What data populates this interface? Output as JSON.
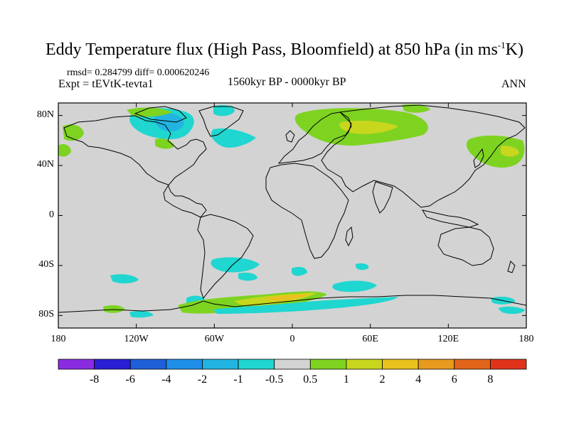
{
  "title": {
    "main": "Eddy Temperature flux (High Pass, Bloomfield) at 850 hPa (in ms",
    "superscript": "-1",
    "tail": "K)"
  },
  "stats": "rmsd= 0.284799 diff= 0.000620246",
  "experiment": "Expt = tEVtK-tevta1",
  "period": "1560kyr BP - 0000kyr BP",
  "season": "ANN",
  "map": {
    "ocean_land_color": "#d3d3d3",
    "lat_ticks": [
      "80N",
      "40N",
      "0",
      "40S",
      "80S"
    ],
    "lat_values": [
      80,
      40,
      0,
      -40,
      -80
    ],
    "lon_ticks": [
      "180",
      "120W",
      "60W",
      "0",
      "60E",
      "120E",
      "180"
    ],
    "lon_values": [
      -180,
      -120,
      -60,
      0,
      60,
      120,
      180
    ]
  },
  "colorbar": {
    "labels": [
      "-8",
      "-6",
      "-4",
      "-2",
      "-1",
      "-0.5",
      "0.5",
      "1",
      "2",
      "4",
      "6",
      "8"
    ],
    "colors": [
      "#8a2be2",
      "#2a1fd4",
      "#1f5fd8",
      "#1e8ee8",
      "#22b4e0",
      "#20d6d0",
      "#d3d3d3",
      "#7ed321",
      "#c8d61e",
      "#e8c21e",
      "#e89a1e",
      "#e0641a",
      "#e0341a"
    ]
  },
  "colors": {
    "neg_light": "#20d6d0",
    "neg_med": "#22b4e0",
    "neg_strong": "#1e8ee8",
    "pos_light": "#7ed321",
    "pos_med": "#c8d61e",
    "pos_strong": "#e8c21e"
  }
}
